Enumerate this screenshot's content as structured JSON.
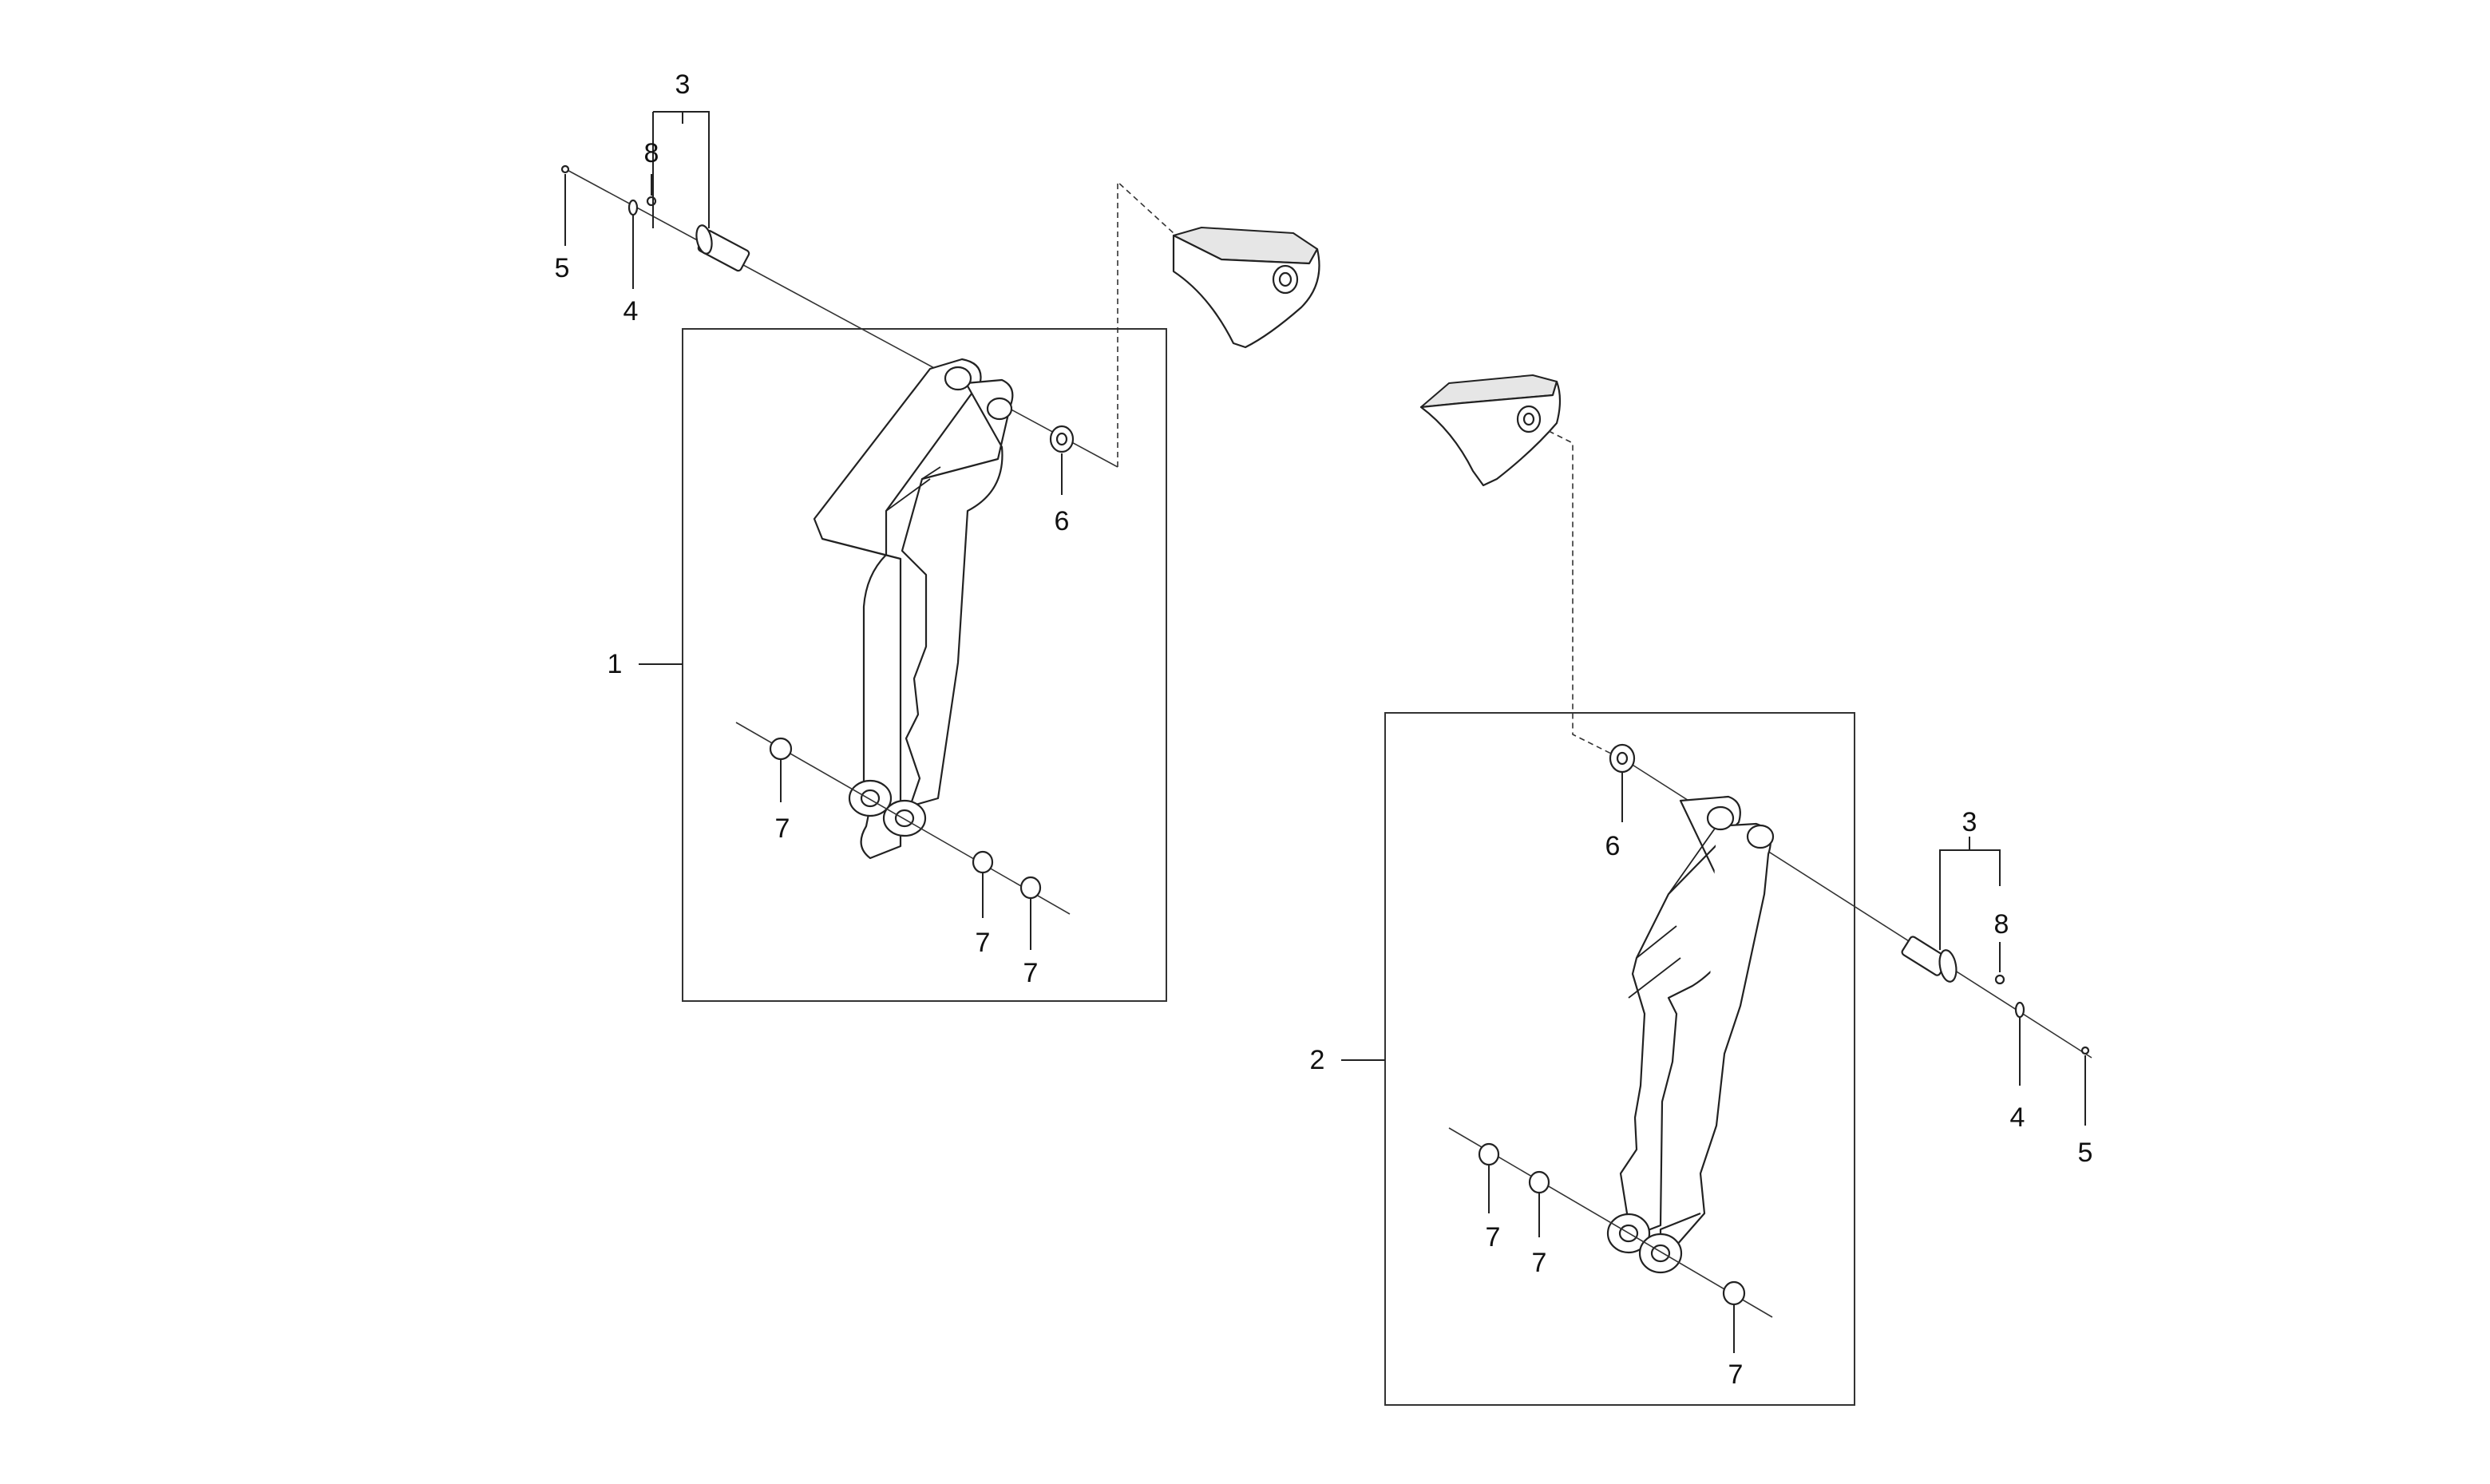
{
  "callouts": {
    "left": {
      "c1": "1",
      "c3": "3",
      "c4": "4",
      "c5": "5",
      "c6": "6",
      "c8": "8",
      "c7a": "7",
      "c7b": "7",
      "c7c": "7"
    },
    "right": {
      "c2": "2",
      "c3": "3",
      "c4": "4",
      "c5": "5",
      "c6": "6",
      "c8": "8",
      "c7a": "7",
      "c7b": "7",
      "c7c": "7"
    }
  }
}
